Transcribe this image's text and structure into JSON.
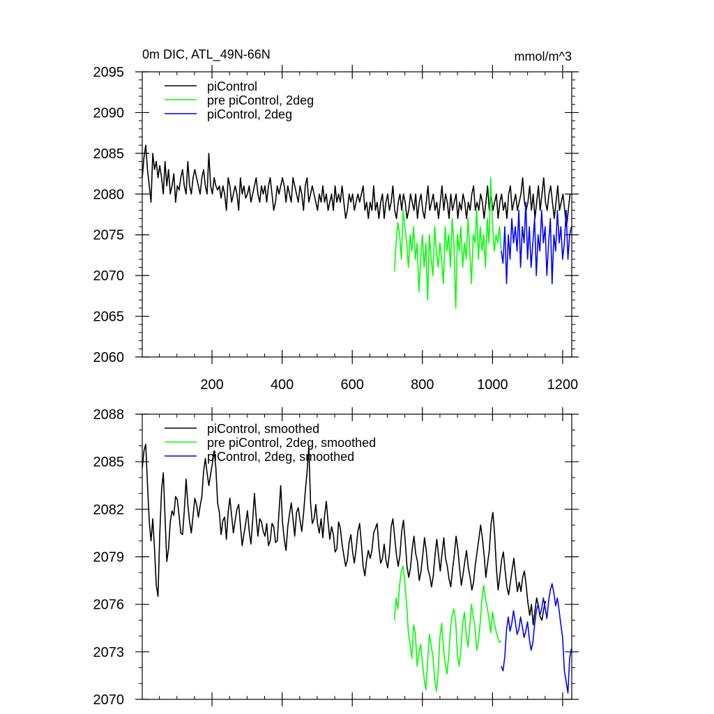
{
  "chart_data": [
    {
      "type": "line",
      "title": "0m DIC, ATL_49N-66N",
      "units": "mmol/m^3",
      "xlim": [
        1,
        1226
      ],
      "ylim": [
        2060,
        2095
      ],
      "x_ticks": [
        200,
        400,
        600,
        800,
        1000,
        1200
      ],
      "x_tick_labels": [
        "200",
        "400",
        "600",
        "800",
        "1000",
        "1200"
      ],
      "y_ticks": [
        2060,
        2065,
        2070,
        2075,
        2080,
        2085,
        2090,
        2095
      ],
      "y_tick_labels": [
        "2060",
        "2065",
        "2070",
        "2075",
        "2080",
        "2085",
        "2090",
        "2095"
      ],
      "legend": [
        "piControl",
        "pre piControl, 2deg",
        "piControl, 2deg"
      ],
      "legend_position": "top-left",
      "series": [
        {
          "name": "piControl",
          "color": "#000000",
          "x_range": [
            1,
            1225
          ],
          "step": 5,
          "values": [
            2082,
            2084.5,
            2086,
            2083,
            2081,
            2079,
            2085,
            2083,
            2084,
            2082,
            2083.5,
            2082,
            2080,
            2084,
            2081,
            2083,
            2080,
            2081,
            2082.5,
            2079,
            2081,
            2080.5,
            2082,
            2083,
            2081,
            2080,
            2084,
            2081,
            2080,
            2082,
            2083,
            2082,
            2081,
            2080,
            2082,
            2083,
            2081,
            2080,
            2085,
            2081,
            2080,
            2082,
            2081,
            2080.5,
            2081,
            2079.5,
            2081,
            2080,
            2078,
            2082,
            2081,
            2079,
            2080,
            2081,
            2080,
            2078,
            2082,
            2080,
            2081,
            2079.5,
            2080,
            2081,
            2079,
            2080,
            2081,
            2082,
            2080,
            2079,
            2081,
            2080,
            2081,
            2079,
            2081,
            2082,
            2080,
            2078,
            2079,
            2081,
            2080,
            2081,
            2082,
            2081,
            2079,
            2081,
            2080,
            2079,
            2082,
            2081,
            2080,
            2079,
            2081,
            2080,
            2078,
            2081,
            2082,
            2079,
            2080,
            2081,
            2080,
            2079,
            2078,
            2080,
            2079,
            2081,
            2079,
            2080,
            2078,
            2079,
            2080,
            2078,
            2081,
            2079,
            2080,
            2079,
            2081,
            2079,
            2077,
            2078,
            2080,
            2079,
            2080,
            2078,
            2079,
            2080,
            2079,
            2080,
            2081,
            2078,
            2079,
            2077,
            2079,
            2078,
            2081,
            2078,
            2079,
            2077,
            2079,
            2080,
            2077,
            2079,
            2080,
            2078,
            2079,
            2081,
            2078,
            2077,
            2079,
            2080,
            2078,
            2080,
            2079,
            2077,
            2078,
            2080,
            2079,
            2078,
            2080,
            2077,
            2079,
            2080,
            2078,
            2077,
            2079,
            2081,
            2078,
            2079,
            2080,
            2078,
            2079,
            2077,
            2079,
            2081,
            2078,
            2080,
            2079,
            2077,
            2080,
            2078,
            2079,
            2080,
            2077,
            2079,
            2078,
            2080,
            2079,
            2077,
            2079,
            2078,
            2080,
            2081,
            2078,
            2079,
            2078,
            2080,
            2079,
            2077,
            2079,
            2081,
            2078,
            2080,
            2078,
            2079,
            2080,
            2077,
            2079,
            2080,
            2078,
            2079,
            2077,
            2080,
            2081,
            2078,
            2079,
            2080,
            2078,
            2079,
            2080,
            2082,
            2079,
            2078,
            2079,
            2081,
            2078,
            2080,
            2077,
            2079,
            2081,
            2078,
            2080,
            2082,
            2079,
            2078,
            2080,
            2081,
            2079,
            2077,
            2079,
            2081,
            2078,
            2079,
            2080,
            2078,
            2076,
            2078,
            2080
          ]
        },
        {
          "name": "pre piControl, 2deg",
          "color": "#00ff00",
          "x_range": [
            720,
            1025
          ],
          "step": 5,
          "values": [
            2070.5,
            2074,
            2076.5,
            2075,
            2072,
            2078,
            2076,
            2074,
            2071,
            2075,
            2073,
            2076,
            2072,
            2074,
            2068,
            2072,
            2075,
            2071,
            2074,
            2067,
            2075,
            2072,
            2070,
            2076,
            2073,
            2071,
            2074,
            2072,
            2069,
            2076,
            2073,
            2075,
            2071,
            2077,
            2074,
            2066,
            2075,
            2073,
            2076,
            2071,
            2074,
            2072,
            2077,
            2073,
            2069,
            2075,
            2074,
            2078,
            2072,
            2076,
            2073,
            2075,
            2071,
            2077,
            2074,
            2082,
            2076,
            2073,
            2075,
            2074,
            2076,
            2073
          ]
        },
        {
          "name": "piControl, 2deg",
          "color": "#0000ff",
          "x_range": [
            1025,
            1225
          ],
          "step": 5,
          "values": [
            2073,
            2071.5,
            2076,
            2069,
            2075,
            2072,
            2077,
            2074,
            2076,
            2073,
            2078,
            2071,
            2076,
            2074,
            2079,
            2072,
            2076,
            2071,
            2074,
            2077,
            2070,
            2075,
            2073,
            2078,
            2074,
            2076,
            2070,
            2074,
            2077,
            2069,
            2075,
            2073,
            2078,
            2074,
            2076,
            2072,
            2074,
            2078,
            2072,
            2075,
            2076
          ]
        }
      ]
    },
    {
      "type": "line",
      "title": "",
      "xlim": [
        1,
        1226
      ],
      "ylim": [
        2070,
        2088
      ],
      "x_ticks": [
        200,
        400,
        600,
        800,
        1000,
        1200
      ],
      "y_ticks": [
        2070,
        2073,
        2076,
        2079,
        2082,
        2085,
        2088
      ],
      "y_tick_labels": [
        "2070",
        "2073",
        "2076",
        "2079",
        "2082",
        "2085",
        "2088"
      ],
      "legend": [
        "piControl, smoothed",
        "pre piControl, 2deg, smoothed",
        "piControl, 2deg, smoothed"
      ],
      "legend_position": "top-left",
      "series": [
        {
          "name": "piControl, smoothed",
          "color": "#000000",
          "x_range": [
            1,
            1225
          ],
          "step": 5,
          "values": [
            2084.6,
            2085.7,
            2086.1,
            2083.6,
            2081.2,
            2080,
            2081.4,
            2079.5,
            2077.2,
            2076.5,
            2080.4,
            2083.2,
            2084.3,
            2081.5,
            2078.7,
            2079.5,
            2081.2,
            2081.9,
            2081.6,
            2082.8,
            2082.6,
            2081.6,
            2080.5,
            2080.4,
            2081.9,
            2083.9,
            2082.3,
            2081.2,
            2080.5,
            2081.6,
            2082.7,
            2082.3,
            2081.5,
            2082.2,
            2082.8,
            2084.4,
            2085.2,
            2084.3,
            2083.5,
            2084.2,
            2084.9,
            2085.7,
            2084.6,
            2082.4,
            2081.8,
            2080.4,
            2081.3,
            2081.5,
            2080.1,
            2081.8,
            2082.7,
            2081.6,
            2080.5,
            2081.3,
            2082,
            2082.3,
            2081,
            2079.7,
            2080.4,
            2081.1,
            2081.9,
            2080.6,
            2079.8,
            2081.3,
            2083,
            2081.5,
            2080.3,
            2081.4,
            2081.2,
            2080.6,
            2080.3,
            2081.1,
            2079.7,
            2080,
            2081.1,
            2080.9,
            2079.9,
            2080,
            2081.8,
            2083.5,
            2081.2,
            2080.1,
            2079.4,
            2080.9,
            2081.7,
            2082.4,
            2081.4,
            2080.3,
            2081.8,
            2082.1,
            2081.3,
            2080.6,
            2081.7,
            2083.1,
            2084.3,
            2085.9,
            2082.4,
            2081.1,
            2081.4,
            2082.3,
            2081.1,
            2080.5,
            2081.4,
            2080.2,
            2081.6,
            2082.5,
            2081.2,
            2080.1,
            2080.9,
            2080.4,
            2079.3,
            2079.5,
            2081.2,
            2080.8,
            2079.8,
            2079.1,
            2078.4,
            2078.8,
            2079.9,
            2080.4,
            2079.3,
            2078.6,
            2079.5,
            2080.6,
            2081.1,
            2079.8,
            2078.4,
            2077.8,
            2078.8,
            2079.4,
            2078.9,
            2079.4,
            2080.5,
            2080.8,
            2081.1,
            2079.6,
            2078.6,
            2078.9,
            2079.8,
            2078.8,
            2078.3,
            2079.2,
            2080.9,
            2081.4,
            2080.2,
            2079.1,
            2078.4,
            2079.1,
            2080.6,
            2081.3,
            2080,
            2078.4,
            2077.7,
            2078.3,
            2079.5,
            2080.3,
            2079.2,
            2078.7,
            2077.5,
            2078.1,
            2079.1,
            2080.2,
            2079.4,
            2078.2,
            2077.8,
            2077.1,
            2077.8,
            2079.1,
            2080.1,
            2079.1,
            2078.1,
            2079.2,
            2080.2,
            2078.9,
            2078.4,
            2077.6,
            2077.1,
            2078.2,
            2079.1,
            2080.3,
            2079.5,
            2078.3,
            2077.2,
            2077.9,
            2078.7,
            2079.4,
            2078.3,
            2077.7,
            2076.9,
            2077.4,
            2078.5,
            2079.3,
            2080.1,
            2081,
            2080.2,
            2079.1,
            2077.7,
            2078.6,
            2079.4,
            2081.1,
            2081.8,
            2080.4,
            2078.3,
            2076.9,
            2077.8,
            2078.8,
            2079.3,
            2078.1,
            2077.1,
            2076.6,
            2077.4,
            2078.2,
            2078.9,
            2077.8,
            2076.8,
            2077.4,
            2076.8,
            2077.7,
            2078.1,
            2077.2,
            2076.1,
            2075.3,
            2076,
            2074.7,
            2075.6,
            2076.4,
            2075.9,
            2075.2,
            2075,
            2075.7,
            2076.2
          ]
        },
        {
          "name": "pre piControl, 2deg, smoothed",
          "color": "#00ff00",
          "x_range": [
            720,
            1025
          ],
          "step": 5,
          "values": [
            2075,
            2076.4,
            2075.7,
            2077.2,
            2078.1,
            2078.4,
            2077.3,
            2076,
            2074.2,
            2073.5,
            2072.6,
            2074.7,
            2074.2,
            2072.1,
            2072.9,
            2073.5,
            2072.3,
            2071.3,
            2070.6,
            2072.4,
            2074.1,
            2073.4,
            2072.7,
            2071.3,
            2070.5,
            2071.7,
            2073.9,
            2074.8,
            2073.2,
            2072.3,
            2071.6,
            2072.7,
            2074.4,
            2075.3,
            2075.7,
            2074.9,
            2072.8,
            2072.1,
            2073.2,
            2074.8,
            2075.5,
            2074.1,
            2073.3,
            2074.6,
            2076,
            2075.2,
            2074.6,
            2073.1,
            2073.7,
            2074.9,
            2076.4,
            2077.2,
            2076.3,
            2075.8,
            2075.1,
            2074.2,
            2075.5,
            2074.8,
            2074.3,
            2073.9,
            2073.6,
            2073.7
          ]
        },
        {
          "name": "piControl, 2deg, smoothed",
          "color": "#0000ff",
          "x_range": [
            1025,
            1225
          ],
          "step": 5,
          "values": [
            2072.1,
            2071.8,
            2072.7,
            2074.4,
            2075.2,
            2074.3,
            2074.8,
            2075.6,
            2074.9,
            2074.1,
            2074.4,
            2075.2,
            2074.6,
            2073.9,
            2074.3,
            2074.9,
            2073.8,
            2073.1,
            2073.6,
            2074.7,
            2075.6,
            2076,
            2075.3,
            2075.7,
            2076.4,
            2075.8,
            2075.1,
            2076.2,
            2076.9,
            2077.3,
            2076.7,
            2075.9,
            2076.4,
            2075.6,
            2074.7,
            2073.9,
            2071.8,
            2071.1,
            2070.4,
            2072.6,
            2073.2
          ]
        }
      ]
    }
  ]
}
